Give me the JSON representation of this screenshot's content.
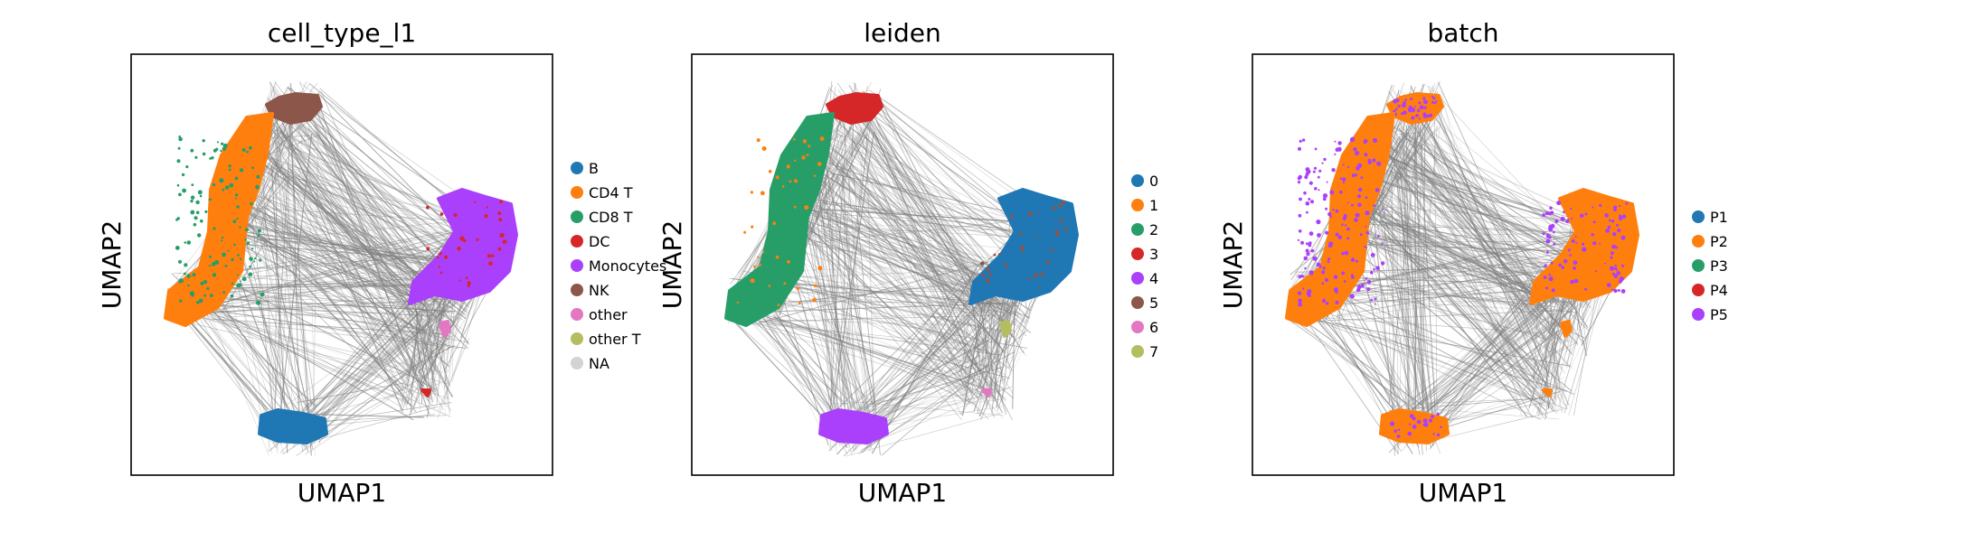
{
  "chart_data": [
    {
      "type": "scatter",
      "title": "cell_type_l1",
      "xlabel": "UMAP1",
      "ylabel": "UMAP2",
      "legend_position": "right",
      "legend": [
        {
          "label": "B",
          "color": "#1f77b4"
        },
        {
          "label": "CD4 T",
          "color": "#ff7f0e"
        },
        {
          "label": "CD8 T",
          "color": "#279e68"
        },
        {
          "label": "DC",
          "color": "#d62728"
        },
        {
          "label": "Monocytes",
          "color": "#aa40fc"
        },
        {
          "label": "NK",
          "color": "#8c564b"
        },
        {
          "label": "other",
          "color": "#e377c2"
        },
        {
          "label": "other T",
          "color": "#b5bd61"
        },
        {
          "label": "NA",
          "color": "#d3d3d3"
        }
      ]
    },
    {
      "type": "scatter",
      "title": "leiden",
      "xlabel": "UMAP1",
      "ylabel": "UMAP2",
      "legend_position": "right",
      "legend": [
        {
          "label": "0",
          "color": "#1f77b4"
        },
        {
          "label": "1",
          "color": "#ff7f0e"
        },
        {
          "label": "2",
          "color": "#279e68"
        },
        {
          "label": "3",
          "color": "#d62728"
        },
        {
          "label": "4",
          "color": "#aa40fc"
        },
        {
          "label": "5",
          "color": "#8c564b"
        },
        {
          "label": "6",
          "color": "#e377c2"
        },
        {
          "label": "7",
          "color": "#b5bd61"
        }
      ]
    },
    {
      "type": "scatter",
      "title": "batch",
      "xlabel": "UMAP1",
      "ylabel": "UMAP2",
      "legend_position": "right",
      "legend": [
        {
          "label": "P1",
          "color": "#1f77b4"
        },
        {
          "label": "P2",
          "color": "#ff7f0e"
        },
        {
          "label": "P3",
          "color": "#279e68"
        },
        {
          "label": "P4",
          "color": "#d62728"
        },
        {
          "label": "P5",
          "color": "#aa40fc"
        }
      ]
    }
  ]
}
